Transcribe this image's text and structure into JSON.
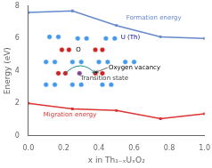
{
  "chart_data": {
    "type": "line",
    "xlabel": "x in Th₁₋ₓUₓO₂",
    "ylabel": "Energy (eV)",
    "xlim": [
      0.0,
      1.0
    ],
    "ylim": [
      0,
      8
    ],
    "xticks": [
      {
        "value": 0.0,
        "label": "0.0"
      },
      {
        "value": 0.2,
        "label": "0.2"
      },
      {
        "value": 0.4,
        "label": "0.4"
      },
      {
        "value": 0.6,
        "label": "0.6"
      },
      {
        "value": 0.8,
        "label": "0.8"
      },
      {
        "value": 1.0,
        "label": "1.0"
      }
    ],
    "yticks": [
      0,
      2,
      4,
      6,
      8
    ],
    "grid": false,
    "series": [
      {
        "type": "line",
        "marker": "square",
        "color": "#6688cc",
        "x": [
          0.0,
          0.25,
          0.5,
          0.75,
          1.0
        ],
        "values": [
          7.6,
          7.7,
          6.8,
          6.1,
          6.0
        ]
      },
      {
        "type": "line",
        "marker": "square",
        "color": "#dd3333",
        "x": [
          0.0,
          0.25,
          0.5,
          0.75,
          1.0
        ],
        "values": [
          2.0,
          1.65,
          1.55,
          1.05,
          1.35
        ]
      },
      {
        "type": "scatter",
        "marker": "circle",
        "color": "#4499ee",
        "x": [
          0.12,
          0.17,
          0.28,
          0.33,
          0.44,
          0.49
        ],
        "values": [
          6.1,
          6.1,
          6.0,
          6.0,
          6.0,
          6.0
        ]
      },
      {
        "type": "scatter",
        "marker": "circle",
        "color": "#cc2222",
        "x": [
          0.19,
          0.23,
          0.38,
          0.42
        ],
        "values": [
          5.3,
          5.3,
          5.3,
          5.3
        ]
      },
      {
        "type": "scatter",
        "marker": "circle",
        "color": "#4499ee",
        "x": [
          0.1,
          0.15,
          0.25,
          0.3,
          0.4,
          0.45,
          0.55,
          0.6
        ],
        "values": [
          4.55,
          4.55,
          4.55,
          4.55,
          4.55,
          4.55,
          4.55,
          4.55
        ]
      },
      {
        "type": "scatter",
        "marker": "circle",
        "color": "#cc2222",
        "x": [
          0.17,
          0.21
        ],
        "values": [
          3.85,
          3.85
        ]
      },
      {
        "type": "scatter",
        "marker": "circle",
        "color": "#cc2222",
        "x": [
          0.38,
          0.42
        ],
        "values": [
          3.85,
          3.85
        ]
      },
      {
        "type": "scatter",
        "marker": "circle",
        "color": "#4499ee",
        "x": [
          0.1,
          0.15,
          0.25,
          0.3,
          0.42,
          0.47
        ],
        "values": [
          3.15,
          3.15,
          3.15,
          3.15,
          3.15,
          3.15
        ]
      },
      {
        "type": "scatter",
        "marker": "circle",
        "color": "#884499",
        "x": [
          0.29
        ],
        "values": [
          3.85
        ]
      }
    ],
    "annotations": [
      {
        "text": "Formation energy",
        "x": 0.55,
        "y": 7.25,
        "color": "#6688cc"
      },
      {
        "text": "Migration energy",
        "x": 0.08,
        "y": 1.3,
        "color": "#dd3333"
      },
      {
        "text": "U (Th)",
        "x": 0.52,
        "y": 6.05,
        "color": "navy"
      },
      {
        "text": "O",
        "x": 0.265,
        "y": 5.3,
        "color": "black"
      },
      {
        "text": "Oxygen vacancy",
        "x": 0.45,
        "y": 4.2,
        "color": "black",
        "arrow_to": [
          0.38,
          3.9
        ]
      },
      {
        "text": "Transition state",
        "x": 0.29,
        "y": 3.55,
        "color": "#444444"
      }
    ],
    "arrows": [
      {
        "from": [
          0.21,
          3.85
        ],
        "to": [
          0.38,
          3.85
        ],
        "color": "teal"
      }
    ]
  }
}
